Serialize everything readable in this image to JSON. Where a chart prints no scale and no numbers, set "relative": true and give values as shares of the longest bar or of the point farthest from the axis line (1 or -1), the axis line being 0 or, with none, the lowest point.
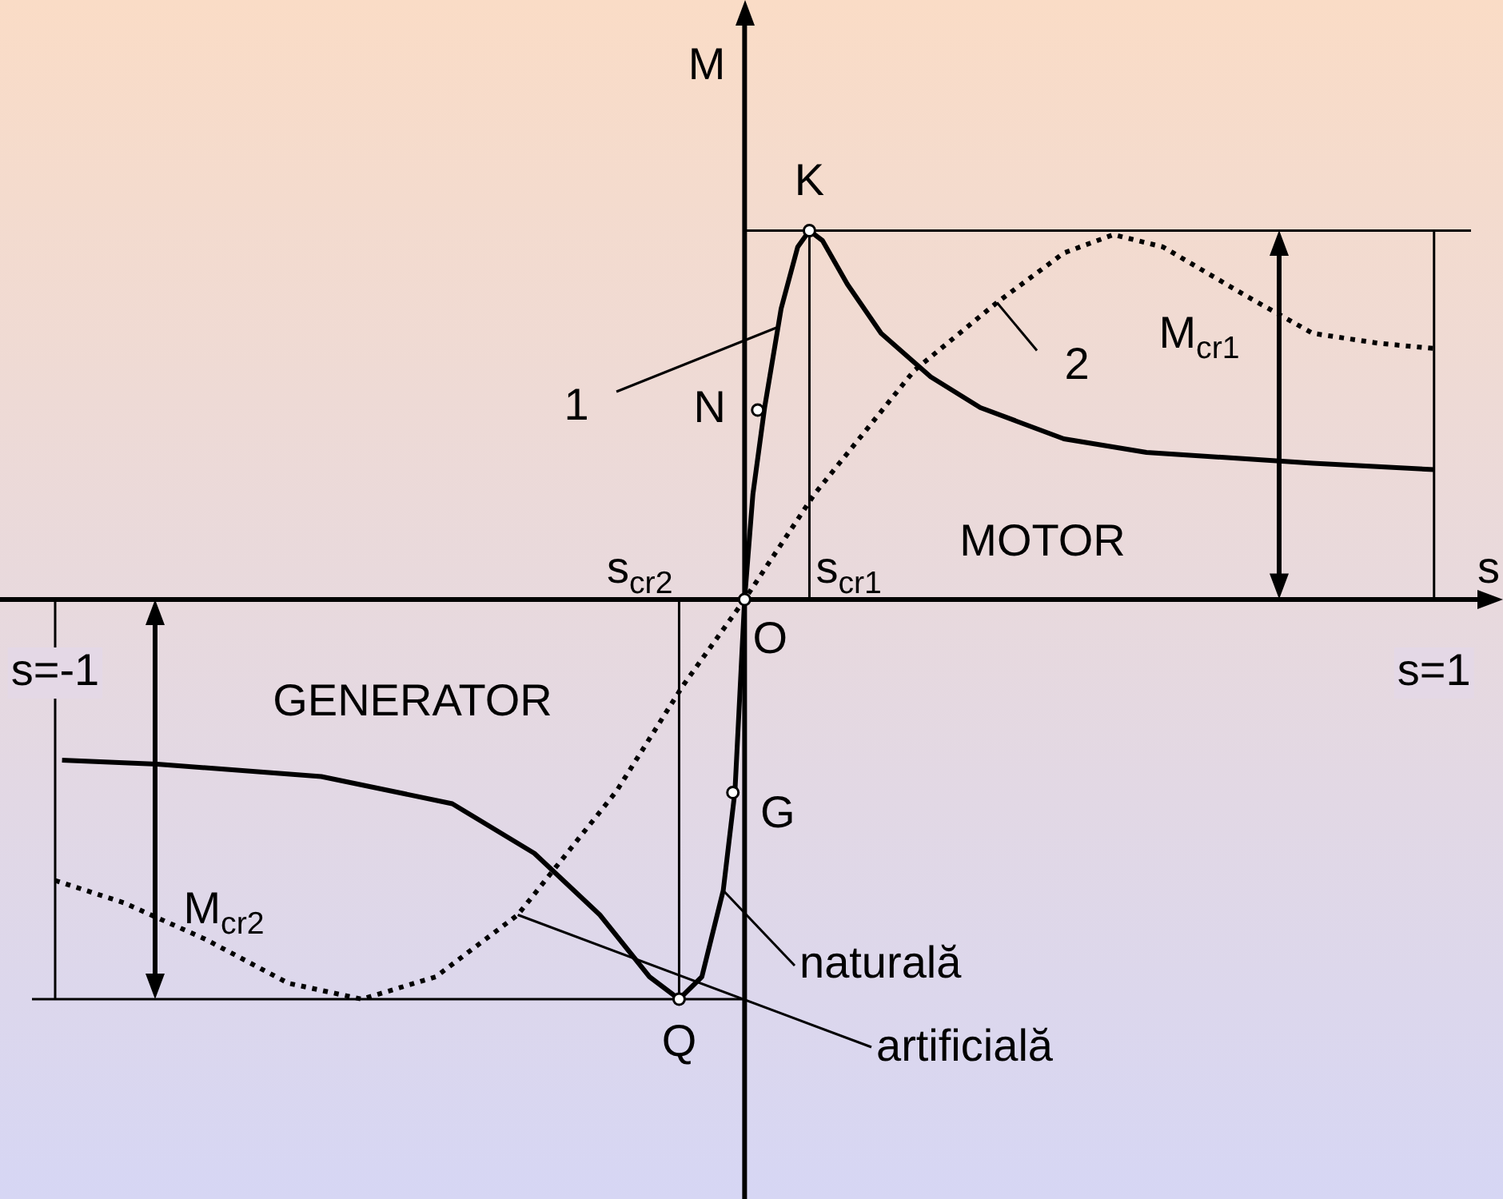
{
  "chart_data": {
    "type": "line",
    "relative": true,
    "xlabel": "s",
    "ylabel": "M",
    "xlim": [
      -1.08,
      1.1
    ],
    "xticks": [
      {
        "value": -1,
        "label": "s=-1"
      },
      {
        "value": 1,
        "label": "s=1"
      }
    ],
    "series": [
      {
        "name": "naturală",
        "color": "#000000",
        "line_style": "solid",
        "x": [
          -0.99,
          -0.852,
          -0.614,
          -0.424,
          -0.305,
          -0.21,
          -0.138,
          -0.095,
          -0.062,
          -0.031,
          -0.014,
          0,
          0.012,
          0.029,
          0.053,
          0.077,
          0.094,
          0.113,
          0.149,
          0.198,
          0.27,
          0.342,
          0.463,
          0.583,
          0.824,
          1
        ],
        "values": [
          -0.402,
          -0.412,
          -0.443,
          -0.511,
          -0.635,
          -0.789,
          -0.944,
          -1,
          -0.944,
          -0.728,
          -0.48,
          0,
          0.263,
          0.48,
          0.728,
          0.882,
          0.923,
          0.898,
          0.789,
          0.666,
          0.557,
          0.48,
          0.402,
          0.368,
          0.341,
          0.325
        ]
      },
      {
        "name": "artificială",
        "color": "#000000",
        "line_style": "dotted",
        "x": [
          -1,
          -0.9,
          -0.781,
          -0.662,
          -0.555,
          -0.448,
          -0.329,
          -0.186,
          -0.09,
          0,
          0.101,
          0.246,
          0.366,
          0.463,
          0.535,
          0.607,
          0.728,
          0.824,
          0.92,
          1
        ],
        "values": [
          -0.703,
          -0.759,
          -0.851,
          -0.96,
          -1,
          -0.944,
          -0.789,
          -0.48,
          -0.217,
          0,
          0.263,
          0.573,
          0.743,
          0.867,
          0.913,
          0.882,
          0.759,
          0.666,
          0.641,
          0.628
        ]
      }
    ],
    "ref_lines": [
      {
        "axis": "y",
        "value": 0.923
      },
      {
        "axis": "y",
        "value": -1
      },
      {
        "axis": "x",
        "value": 0.094,
        "label": "s$_{cr1}$"
      },
      {
        "axis": "x",
        "value": -0.095,
        "label": "s$_{cr2}$"
      },
      {
        "axis": "x",
        "value": 1
      },
      {
        "axis": "x",
        "value": -1
      }
    ],
    "annotations": [
      {
        "text": "K",
        "x": 0.094,
        "y": 0.923
      },
      {
        "text": "N",
        "x": 0.019,
        "y": 0.474
      },
      {
        "text": "O",
        "x": 0,
        "y": 0
      },
      {
        "text": "G",
        "x": -0.017,
        "y": -0.483
      },
      {
        "text": "Q",
        "x": -0.095,
        "y": -1
      },
      {
        "text": "1",
        "x": 0.046,
        "y": 0.68
      },
      {
        "text": "2",
        "x": 0.366,
        "y": 0.743
      },
      "M$_{cr1}$",
      "M$_{cr2}$",
      "MOTOR",
      "GENERATOR"
    ],
    "legend": false
  }
}
